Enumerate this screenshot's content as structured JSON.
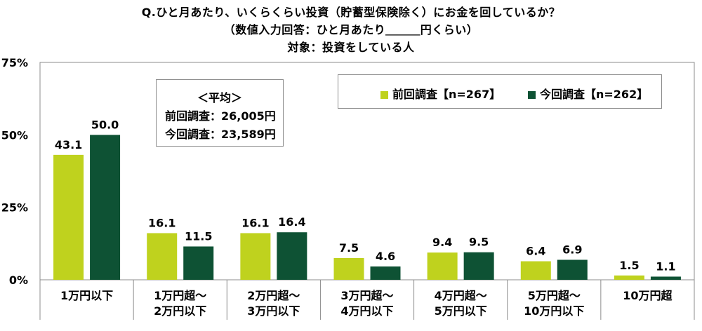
{
  "title_lines": [
    "Q.ひと月あたり、いくらくらい投資（貯蓄型保険除く）にお金を回しているか？",
    "（数値入力回答：ひと月あたり＿＿＿円くらい）",
    "対象：投資をしている人"
  ],
  "average_box": {
    "heading": "＜平均＞",
    "previous": "前回調査：26,005円",
    "current": "今回調査：23,589円"
  },
  "colors": {
    "previous": "#bfd21e",
    "current": "#0e5234"
  },
  "chart_data": {
    "type": "bar",
    "categories": [
      [
        "1万円以下"
      ],
      [
        "1万円超～",
        "2万円以下"
      ],
      [
        "2万円超～",
        "3万円以下"
      ],
      [
        "3万円超～",
        "4万円以下"
      ],
      [
        "4万円超～",
        "5万円以下"
      ],
      [
        "5万円超～",
        "10万円以下"
      ],
      [
        "10万円超"
      ]
    ],
    "series": [
      {
        "name": "前回調査【n=267】",
        "values": [
          43.1,
          16.1,
          16.1,
          7.5,
          9.4,
          6.4,
          1.5
        ]
      },
      {
        "name": "今回調査【n=262】",
        "values": [
          50.0,
          11.5,
          16.4,
          4.6,
          9.5,
          6.9,
          1.1
        ]
      }
    ],
    "y_ticks": [
      0,
      25,
      50,
      75
    ],
    "y_tick_labels": [
      "0%",
      "25%",
      "50%",
      "75%"
    ],
    "ylim": [
      0,
      75
    ],
    "grid": false,
    "legend_position": "top-right"
  }
}
